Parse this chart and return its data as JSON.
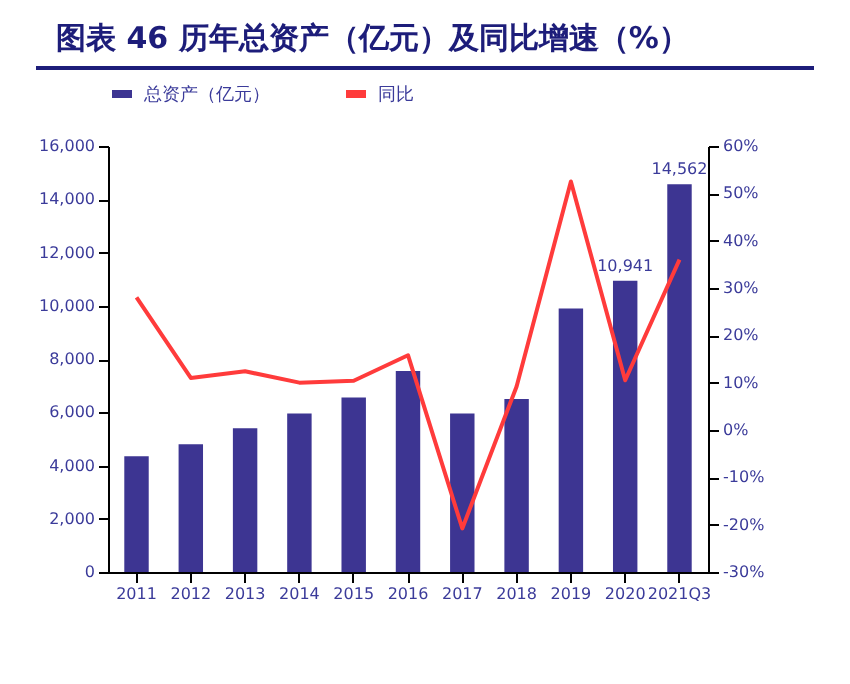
{
  "chart_data": {
    "type": "bar",
    "title": "图表 46 历年总资产（亿元）及同比增速（%）",
    "categories": [
      "2011",
      "2012",
      "2013",
      "2014",
      "2015",
      "2016",
      "2017",
      "2018",
      "2019",
      "2020",
      "2021Q3"
    ],
    "series": [
      {
        "name": "总资产（亿元）",
        "color": "#3d3592",
        "values": [
          4350,
          4800,
          5400,
          5950,
          6550,
          7550,
          5950,
          6500,
          9900,
          10941,
          14562
        ],
        "value_labels": [
          null,
          null,
          null,
          null,
          null,
          null,
          null,
          null,
          null,
          "10,941",
          "14,562"
        ]
      },
      {
        "name": "同比",
        "type": "line",
        "axis": "y2",
        "color": "#ff3b3b",
        "values": [
          28,
          11,
          12.4,
          10,
          10.4,
          15.8,
          -20.8,
          9.2,
          52.5,
          10.5,
          36
        ]
      }
    ],
    "ylim": [
      0,
      16000
    ],
    "yticks": [
      0,
      {
        "value": 2000,
        "label": "2,000"
      },
      {
        "value": 4000,
        "label": "4,000"
      },
      {
        "value": 6000,
        "label": "6,000"
      },
      {
        "value": 8000,
        "label": "8,000"
      },
      {
        "value": 10000,
        "label": "10,000"
      },
      {
        "value": 12000,
        "label": "12,000"
      },
      {
        "value": 14000,
        "label": "14,000"
      },
      {
        "value": 16000,
        "label": "16,000"
      }
    ],
    "y2lim": [
      -30,
      60
    ],
    "y2ticks": [
      {
        "value": -30,
        "label": "-30%"
      },
      {
        "value": -20,
        "label": "-20%"
      },
      {
        "value": -10,
        "label": "-10%"
      },
      {
        "value": 0,
        "label": "0%"
      },
      {
        "value": 10,
        "label": "10%"
      },
      {
        "value": 20,
        "label": "20%"
      },
      {
        "value": 30,
        "label": "30%"
      },
      {
        "value": 40,
        "label": "40%"
      },
      {
        "value": 50,
        "label": "50%"
      },
      {
        "value": 60,
        "label": "60%"
      }
    ],
    "legend": "top",
    "grid": false,
    "line_style": "solid",
    "marker": "none"
  }
}
